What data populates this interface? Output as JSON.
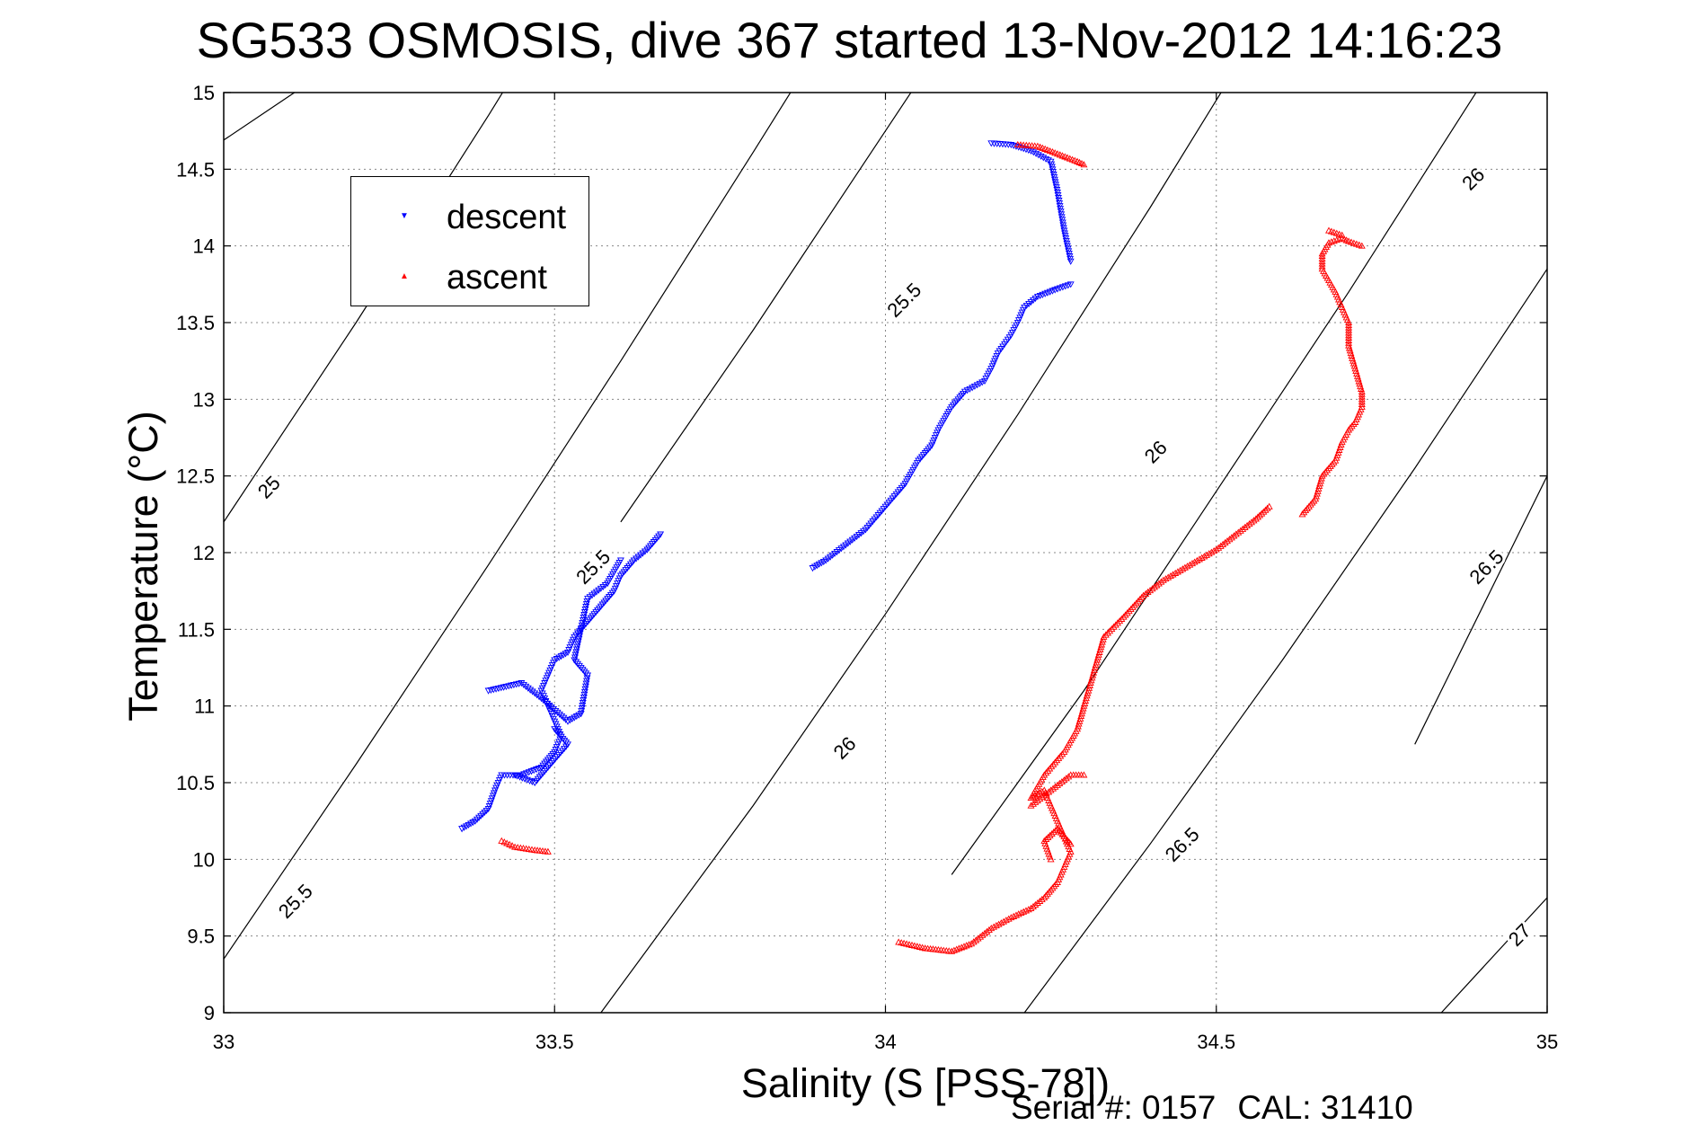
{
  "chart_data": {
    "type": "scatter",
    "title": "SG533 OSMOSIS, dive 367 started 13-Nov-2012 14:16:23",
    "xlabel": "Salinity (S [PSS-78])",
    "ylabel": "Temperature (°C)",
    "xlim": [
      33,
      35
    ],
    "ylim": [
      9,
      15
    ],
    "xticks": [
      "33",
      "33.5",
      "34",
      "34.5",
      "35"
    ],
    "yticks": [
      "9",
      "9.5",
      "10",
      "10.5",
      "11",
      "11.5",
      "12",
      "12.5",
      "13",
      "13.5",
      "14",
      "14.5",
      "15"
    ],
    "grid": true,
    "legend_position": "top-left",
    "series": [
      {
        "name": "descent",
        "marker": "triangle-down",
        "color": "#0000ff",
        "segments": [
          [
            [
              33.36,
              10.2
            ],
            [
              33.38,
              10.25
            ],
            [
              33.4,
              10.33
            ],
            [
              33.41,
              10.45
            ],
            [
              33.42,
              10.55
            ],
            [
              33.45,
              10.55
            ],
            [
              33.48,
              10.6
            ],
            [
              33.5,
              10.7
            ],
            [
              33.51,
              10.8
            ],
            [
              33.5,
              10.9
            ],
            [
              33.49,
              11.0
            ],
            [
              33.48,
              11.1
            ],
            [
              33.49,
              11.2
            ],
            [
              33.5,
              11.3
            ],
            [
              33.52,
              11.35
            ],
            [
              33.53,
              11.45
            ],
            [
              33.55,
              11.55
            ],
            [
              33.57,
              11.65
            ],
            [
              33.59,
              11.75
            ],
            [
              33.6,
              11.85
            ],
            [
              33.62,
              11.95
            ],
            [
              33.64,
              12.02
            ],
            [
              33.66,
              12.12
            ]
          ],
          [
            [
              33.4,
              11.1
            ],
            [
              33.45,
              11.15
            ],
            [
              33.48,
              11.05
            ],
            [
              33.52,
              10.9
            ],
            [
              33.54,
              10.95
            ],
            [
              33.55,
              11.2
            ],
            [
              33.53,
              11.3
            ],
            [
              33.55,
              11.7
            ],
            [
              33.58,
              11.8
            ],
            [
              33.6,
              11.95
            ]
          ],
          [
            [
              33.44,
              10.55
            ],
            [
              33.47,
              10.5
            ],
            [
              33.49,
              10.6
            ],
            [
              33.52,
              10.75
            ],
            [
              33.5,
              10.85
            ]
          ],
          [
            [
              33.89,
              11.9
            ],
            [
              33.91,
              11.95
            ],
            [
              33.94,
              12.05
            ],
            [
              33.97,
              12.15
            ],
            [
              34.0,
              12.3
            ],
            [
              34.03,
              12.45
            ],
            [
              34.05,
              12.6
            ],
            [
              34.07,
              12.7
            ],
            [
              34.08,
              12.8
            ],
            [
              34.1,
              12.95
            ],
            [
              34.12,
              13.05
            ],
            [
              34.15,
              13.12
            ],
            [
              34.16,
              13.2
            ],
            [
              34.17,
              13.3
            ],
            [
              34.19,
              13.42
            ],
            [
              34.2,
              13.5
            ],
            [
              34.21,
              13.6
            ],
            [
              34.23,
              13.67
            ],
            [
              34.26,
              13.72
            ],
            [
              34.28,
              13.75
            ]
          ],
          [
            [
              34.28,
              13.9
            ],
            [
              34.27,
              14.1
            ],
            [
              34.26,
              14.35
            ],
            [
              34.25,
              14.55
            ],
            [
              34.22,
              14.62
            ],
            [
              34.19,
              14.66
            ],
            [
              34.16,
              14.67
            ]
          ]
        ]
      },
      {
        "name": "ascent",
        "marker": "triangle-up",
        "color": "#ff0000",
        "segments": [
          [
            [
              33.42,
              10.12
            ],
            [
              33.44,
              10.08
            ],
            [
              33.47,
              10.06
            ],
            [
              33.49,
              10.05
            ]
          ],
          [
            [
              34.02,
              9.46
            ],
            [
              34.06,
              9.42
            ],
            [
              34.1,
              9.4
            ],
            [
              34.13,
              9.45
            ],
            [
              34.16,
              9.55
            ],
            [
              34.19,
              9.62
            ],
            [
              34.22,
              9.68
            ],
            [
              34.24,
              9.75
            ],
            [
              34.26,
              9.85
            ],
            [
              34.27,
              9.95
            ],
            [
              34.28,
              10.05
            ],
            [
              34.27,
              10.15
            ],
            [
              34.26,
              10.25
            ],
            [
              34.25,
              10.35
            ],
            [
              34.24,
              10.45
            ],
            [
              34.22,
              10.4
            ],
            [
              34.24,
              10.55
            ],
            [
              34.27,
              10.7
            ],
            [
              34.29,
              10.85
            ],
            [
              34.3,
              11.0
            ],
            [
              34.31,
              11.15
            ],
            [
              34.32,
              11.3
            ],
            [
              34.33,
              11.45
            ],
            [
              34.36,
              11.58
            ],
            [
              34.39,
              11.72
            ],
            [
              34.42,
              11.82
            ],
            [
              34.46,
              11.92
            ],
            [
              34.5,
              12.02
            ],
            [
              34.53,
              12.12
            ],
            [
              34.56,
              12.22
            ],
            [
              34.58,
              12.3
            ]
          ],
          [
            [
              34.22,
              10.35
            ],
            [
              34.25,
              10.45
            ],
            [
              34.28,
              10.55
            ],
            [
              34.3,
              10.55
            ]
          ],
          [
            [
              34.25,
              10.0
            ],
            [
              34.24,
              10.12
            ],
            [
              34.26,
              10.2
            ],
            [
              34.28,
              10.1
            ]
          ],
          [
            [
              34.63,
              12.25
            ],
            [
              34.65,
              12.35
            ],
            [
              34.66,
              12.5
            ],
            [
              34.68,
              12.6
            ],
            [
              34.69,
              12.72
            ],
            [
              34.7,
              12.8
            ],
            [
              34.71,
              12.85
            ],
            [
              34.72,
              12.95
            ],
            [
              34.72,
              13.05
            ],
            [
              34.71,
              13.2
            ],
            [
              34.7,
              13.35
            ],
            [
              34.7,
              13.5
            ],
            [
              34.68,
              13.7
            ],
            [
              34.66,
              13.85
            ],
            [
              34.66,
              13.95
            ],
            [
              34.67,
              14.02
            ],
            [
              34.69,
              14.05
            ],
            [
              34.7,
              14.03
            ],
            [
              34.72,
              14.0
            ]
          ],
          [
            [
              34.67,
              14.1
            ],
            [
              34.69,
              14.07
            ]
          ],
          [
            [
              34.2,
              14.66
            ],
            [
              34.23,
              14.65
            ],
            [
              34.26,
              14.6
            ],
            [
              34.29,
              14.55
            ],
            [
              34.3,
              14.53
            ]
          ]
        ]
      }
    ],
    "isopycnals": [
      {
        "label": "25",
        "points": [
          [
            33.0,
            14.69
          ],
          [
            33.1,
            14.98
          ],
          [
            33.2,
            15.27
          ]
        ]
      },
      {
        "label": "25.5",
        "points": [
          [
            33.0,
            9.35
          ],
          [
            33.2,
            10.62
          ],
          [
            33.4,
            11.92
          ],
          [
            33.6,
            13.25
          ],
          [
            33.8,
            14.61
          ],
          [
            33.9,
            15.3
          ]
        ]
      },
      {
        "label": "25",
        "points": [
          [
            33.0,
            12.2
          ],
          [
            33.2,
            13.5
          ],
          [
            33.4,
            14.85
          ],
          [
            33.45,
            15.2
          ]
        ]
      },
      {
        "label": "25.5",
        "points": [
          [
            33.6,
            12.2
          ],
          [
            33.8,
            13.45
          ],
          [
            34.0,
            14.75
          ],
          [
            34.1,
            15.4
          ]
        ]
      },
      {
        "label": "26",
        "points": [
          [
            33.57,
            9.0
          ],
          [
            33.8,
            10.35
          ],
          [
            34.0,
            11.6
          ],
          [
            34.2,
            12.9
          ],
          [
            34.4,
            14.25
          ],
          [
            34.55,
            15.3
          ]
        ]
      },
      {
        "label": "26",
        "points": [
          [
            34.1,
            9.9
          ],
          [
            34.3,
            11.1
          ],
          [
            34.5,
            12.4
          ],
          [
            34.7,
            13.7
          ],
          [
            34.9,
            15.05
          ],
          [
            35.0,
            15.7
          ]
        ]
      },
      {
        "label": "26.5",
        "points": [
          [
            34.21,
            9.0
          ],
          [
            34.4,
            10.1
          ],
          [
            34.6,
            11.3
          ],
          [
            34.8,
            12.55
          ],
          [
            35.0,
            13.85
          ]
        ]
      },
      {
        "label": "26.5",
        "points": [
          [
            34.8,
            10.75
          ],
          [
            35.0,
            12.5
          ]
        ]
      },
      {
        "label": "27",
        "points": [
          [
            34.84,
            9.0
          ],
          [
            35.0,
            9.75
          ]
        ]
      }
    ],
    "contour_labels": [
      {
        "text": "25",
        "x": 33.07,
        "y": 12.42
      },
      {
        "text": "25.5",
        "x": 33.11,
        "y": 9.72
      },
      {
        "text": "25.5",
        "x": 33.56,
        "y": 11.9
      },
      {
        "text": "25.5",
        "x": 34.03,
        "y": 13.64
      },
      {
        "text": "26",
        "x": 33.94,
        "y": 10.72
      },
      {
        "text": "26",
        "x": 34.41,
        "y": 12.65
      },
      {
        "text": "26",
        "x": 34.89,
        "y": 14.43
      },
      {
        "text": "26.5",
        "x": 34.45,
        "y": 10.09
      },
      {
        "text": "26.5",
        "x": 34.91,
        "y": 11.9
      },
      {
        "text": "27",
        "x": 34.96,
        "y": 9.5
      }
    ]
  },
  "footer": {
    "serial": "Serial #: 0157",
    "cal": "CAL: 31410"
  }
}
